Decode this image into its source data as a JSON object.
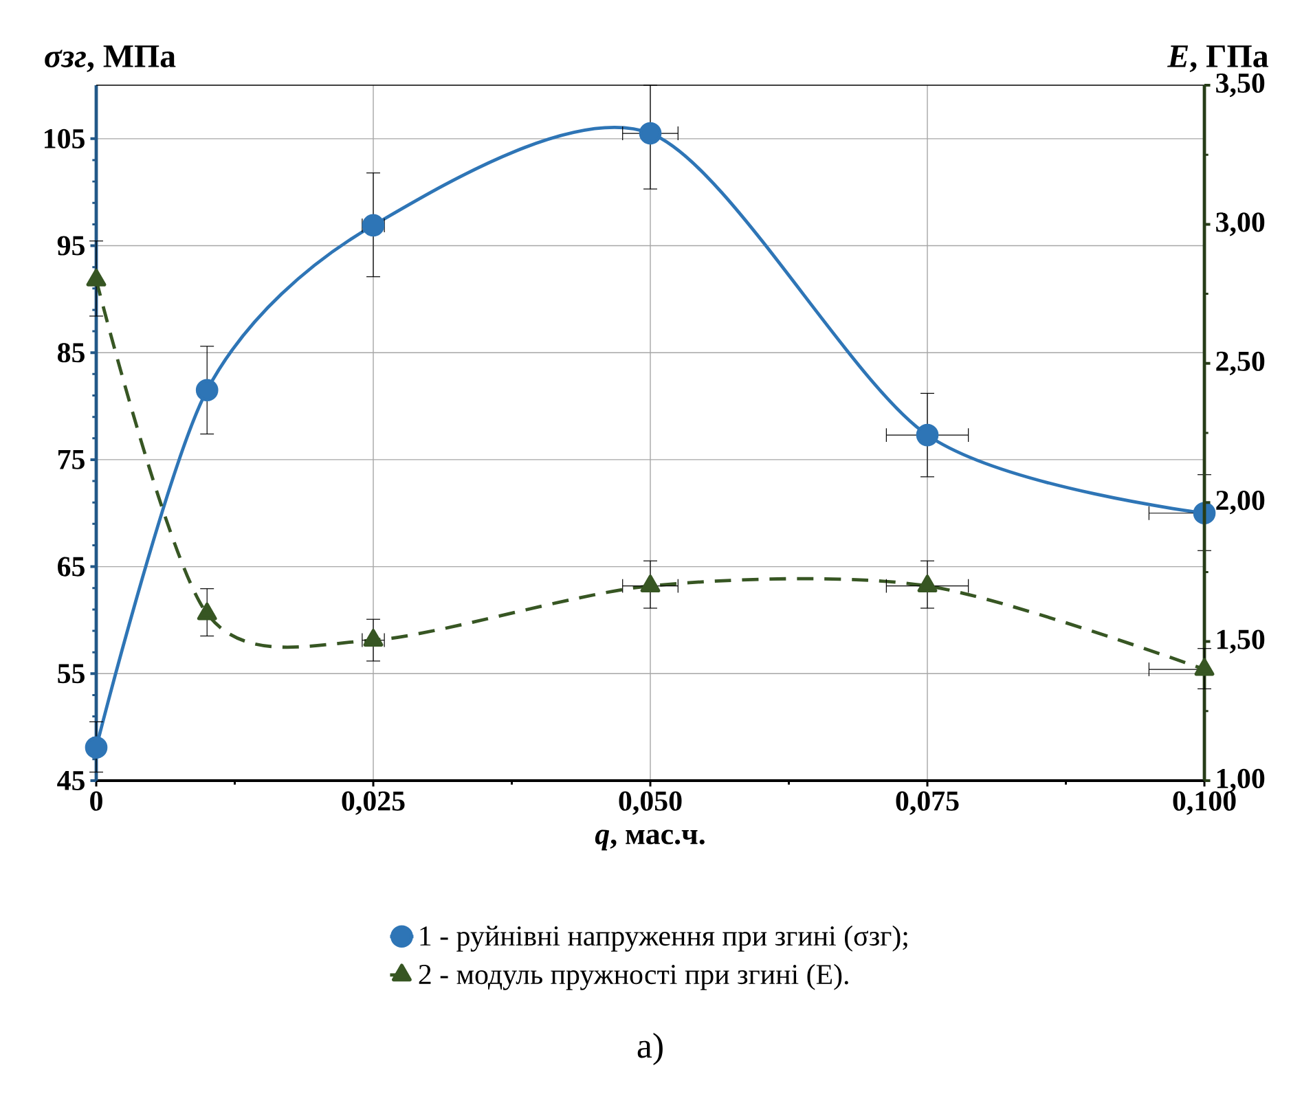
{
  "chart_data": {
    "type": "line",
    "xlabel": "*q*, мас.ч.",
    "ylabel": "*σзг*, МПа",
    "y2label": "*E*, ГПа",
    "x": [
      0,
      0.01,
      0.025,
      0.05,
      0.075,
      0.1
    ],
    "xlim": [
      0,
      0.1
    ],
    "xticks": [
      0,
      {
        "value": 0.025,
        "label": "0,025"
      },
      {
        "value": 0.05,
        "label": "0,050"
      },
      {
        "value": 0.075,
        "label": "0,075"
      },
      {
        "value": 0.1,
        "label": "0,100"
      }
    ],
    "ylim": [
      45,
      110
    ],
    "yticks": [
      45,
      55,
      65,
      75,
      85,
      95,
      105
    ],
    "y2lim": [
      1,
      3.5
    ],
    "y2ticks": [
      {
        "value": 1,
        "label": "1,00"
      },
      {
        "value": 1.5,
        "label": "1,50"
      },
      {
        "value": 2,
        "label": "2,00"
      },
      {
        "value": 2.5,
        "label": "2,50"
      },
      {
        "value": 3,
        "label": "3,00"
      },
      {
        "value": 3.5,
        "label": "3,50"
      }
    ],
    "grid": true,
    "legend": "bottom",
    "series": [
      {
        "name": "1 -  руйнівні напруження при згині (σзг);",
        "color": "#2e75b6",
        "marker": "circle",
        "line_style": "solid",
        "values": [
          48.1,
          81.5,
          96.9,
          105.5,
          77.3,
          70.0
        ],
        "errors": [
          [
            45.8,
            50.5
          ],
          [
            77.4,
            85.6
          ],
          [
            92.1,
            101.8
          ],
          [
            100.3,
            110
          ],
          [
            73.4,
            81.2
          ],
          [
            66.5,
            73.6
          ]
        ],
        "xerrors": [
          null,
          null,
          [
            0.024,
            0.026
          ],
          [
            0.0475,
            0.0525
          ],
          [
            0.0713,
            0.0787
          ],
          [
            0.095,
            0.1
          ]
        ]
      },
      {
        "name": "2 -  модуль  пружності при згині (E).",
        "color": "#375623",
        "marker": "triangle",
        "line_style": "dashed",
        "axis": "y2",
        "values": [
          2.8,
          1.6,
          1.505,
          1.7,
          1.7,
          1.4
        ],
        "errors": [
          [
            2.67,
            2.94
          ],
          [
            1.52,
            1.69
          ],
          [
            1.43,
            1.58
          ],
          [
            1.62,
            1.79
          ],
          [
            1.62,
            1.79
          ],
          [
            1.33,
            1.475
          ]
        ],
        "xerrors": [
          null,
          null,
          [
            0.024,
            0.026
          ],
          [
            0.0475,
            0.0525
          ],
          [
            0.0713,
            0.0787
          ],
          [
            0.095,
            0.1
          ]
        ]
      }
    ],
    "annotations": [
      "а)"
    ]
  }
}
